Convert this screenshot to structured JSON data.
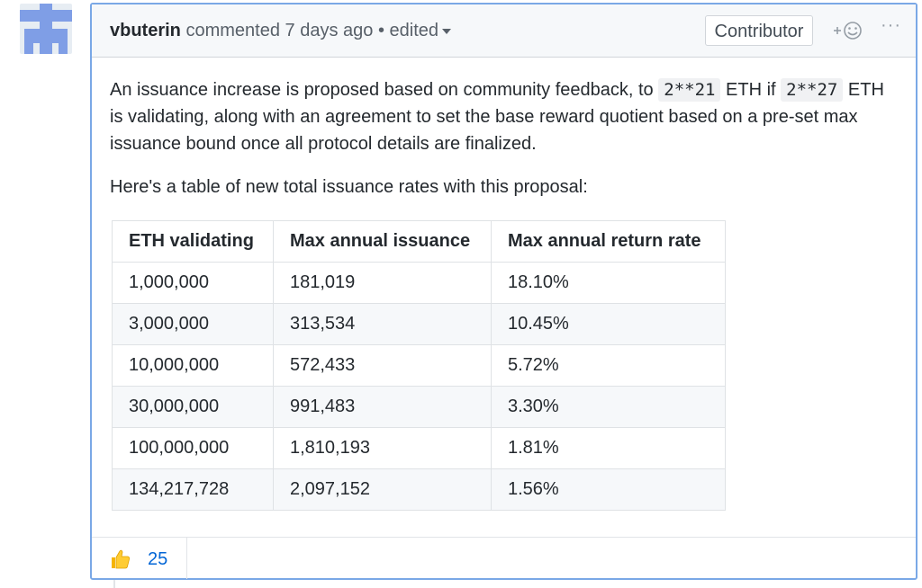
{
  "comment": {
    "author": "vbuterin",
    "action": "commented",
    "time": "7 days ago",
    "separator": "•",
    "edited_label": "edited",
    "badge": "Contributor",
    "more_label": "···"
  },
  "body": {
    "p1_before": "An issuance increase is proposed based on community feedback, to ",
    "code1": "2**21",
    "p1_mid": " ETH if ",
    "code2": "2**27",
    "p1_after": " ETH is validating, along with an agreement to set the base reward quotient based on a pre-set max issuance bound once all protocol details are finalized.",
    "p2": "Here's a table of new total issuance rates with this proposal:"
  },
  "table": {
    "headers": [
      "ETH validating",
      "Max annual issuance",
      "Max annual return rate"
    ],
    "rows": [
      [
        "1,000,000",
        "181,019",
        "18.10%"
      ],
      [
        "3,000,000",
        "313,534",
        "10.45%"
      ],
      [
        "10,000,000",
        "572,433",
        "5.72%"
      ],
      [
        "30,000,000",
        "991,483",
        "3.30%"
      ],
      [
        "100,000,000",
        "1,810,193",
        "1.81%"
      ],
      [
        "134,217,728",
        "2,097,152",
        "1.56%"
      ]
    ]
  },
  "reactions": {
    "thumbs_up_icon": "thumbs-up-icon",
    "count": "25"
  },
  "colors": {
    "border_active": "#7aa8e6",
    "link": "#0366d6",
    "header_bg": "#f6f8fa"
  }
}
